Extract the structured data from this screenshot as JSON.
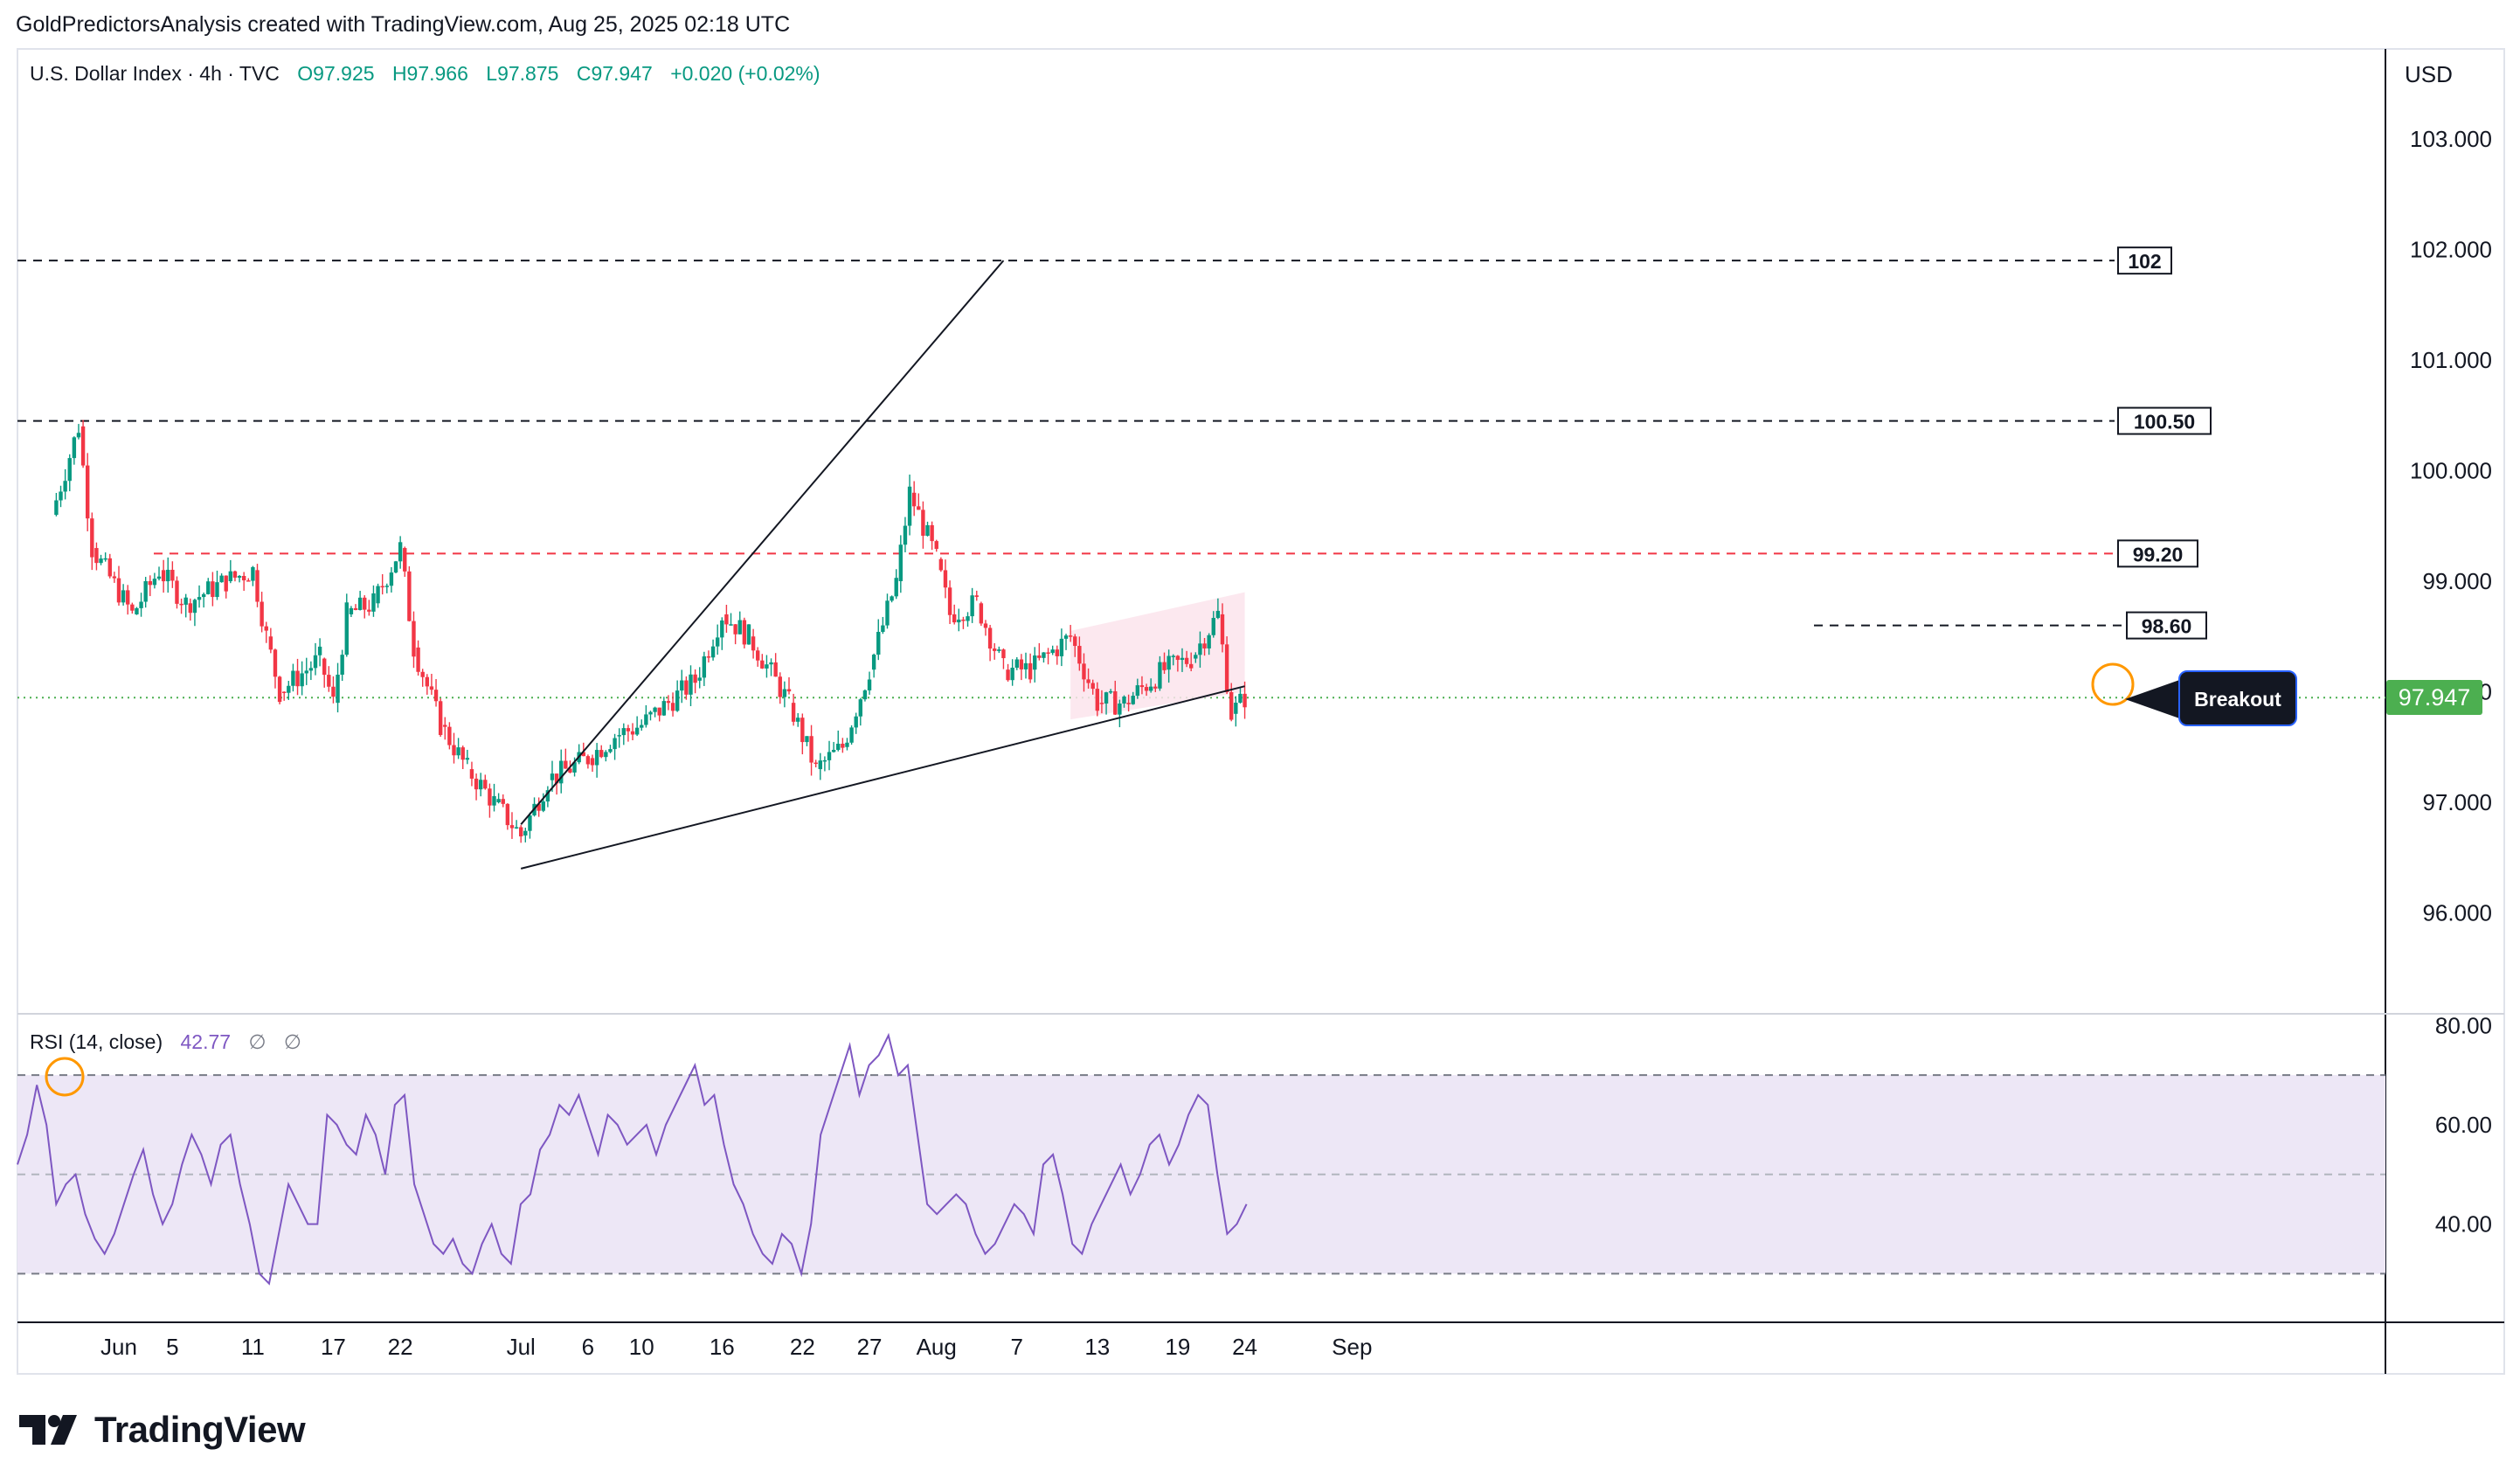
{
  "header": {
    "attribution": "GoldPredictorsAnalysis created with TradingView.com, Aug 25, 2025 02:18 UTC"
  },
  "legend": {
    "symbol": "U.S. Dollar Index · 4h · TVC",
    "open": "O97.925",
    "high": "H97.966",
    "low": "L97.875",
    "close": "C97.947",
    "change": "+0.020 (+0.02%)",
    "up_color": "#089981"
  },
  "price_axis": {
    "currency": "USD",
    "current_price_label": "97.947",
    "current_price_color": "#4caf50"
  },
  "rsi_legend": {
    "name": "RSI (14, close)",
    "value": "42.77",
    "extra1": "∅",
    "extra2": "∅",
    "color": "#7e57c2"
  },
  "annotations": {
    "breakout": "Breakout"
  },
  "branding": {
    "logo_text": "TradingView"
  },
  "colors": {
    "bull": "#089981",
    "bear": "#f23645",
    "rsi_line": "#7e57c2",
    "rsi_band": "#ede7f6",
    "resistance_red": "#f23645",
    "highlight_circle": "#ff9800",
    "pink_zone": "#fce4ec"
  },
  "chart_data": [
    {
      "type": "candlestick",
      "title": "U.S. Dollar Index · 4h · TVC",
      "y_ticks": [
        "96.000",
        "97.000",
        "98.000",
        "99.000",
        "100.000",
        "101.000",
        "102.000",
        "103.000"
      ],
      "x_tick_labels": [
        "Jun",
        "5",
        "11",
        "17",
        "22",
        "Jul",
        "6",
        "10",
        "16",
        "22",
        "27",
        "Aug",
        "7",
        "13",
        "19",
        "24",
        "Sep"
      ],
      "ylim": [
        95.0,
        103.6
      ],
      "current_price": 97.947,
      "close_path": [
        {
          "date": "2025-05-27",
          "close": 99.6
        },
        {
          "date": "2025-05-29",
          "close": 100.4
        },
        {
          "date": "2025-05-30",
          "close": 99.3
        },
        {
          "date": "2025-06-02",
          "close": 98.7
        },
        {
          "date": "2025-06-04",
          "close": 99.1
        },
        {
          "date": "2025-06-06",
          "close": 98.8
        },
        {
          "date": "2025-06-09",
          "close": 99.0
        },
        {
          "date": "2025-06-11",
          "close": 99.1
        },
        {
          "date": "2025-06-12",
          "close": 98.5
        },
        {
          "date": "2025-06-13",
          "close": 98.0
        },
        {
          "date": "2025-06-16",
          "close": 98.3
        },
        {
          "date": "2025-06-17",
          "close": 97.9
        },
        {
          "date": "2025-06-18",
          "close": 98.7
        },
        {
          "date": "2025-06-20",
          "close": 98.8
        },
        {
          "date": "2025-06-22",
          "close": 99.3
        },
        {
          "date": "2025-06-23",
          "close": 98.4
        },
        {
          "date": "2025-06-25",
          "close": 97.7
        },
        {
          "date": "2025-06-27",
          "close": 97.3
        },
        {
          "date": "2025-06-29",
          "close": 97.0
        },
        {
          "date": "2025-07-01",
          "close": 96.7
        },
        {
          "date": "2025-07-03",
          "close": 97.2
        },
        {
          "date": "2025-07-06",
          "close": 97.4
        },
        {
          "date": "2025-07-08",
          "close": 97.6
        },
        {
          "date": "2025-07-10",
          "close": 97.7
        },
        {
          "date": "2025-07-14",
          "close": 98.1
        },
        {
          "date": "2025-07-16",
          "close": 98.7
        },
        {
          "date": "2025-07-18",
          "close": 98.5
        },
        {
          "date": "2025-07-21",
          "close": 97.9
        },
        {
          "date": "2025-07-23",
          "close": 97.3
        },
        {
          "date": "2025-07-25",
          "close": 97.5
        },
        {
          "date": "2025-07-27",
          "close": 98.2
        },
        {
          "date": "2025-07-29",
          "close": 99.0
        },
        {
          "date": "2025-07-30",
          "close": 99.8
        },
        {
          "date": "2025-08-01",
          "close": 99.2
        },
        {
          "date": "2025-08-02",
          "close": 98.7
        },
        {
          "date": "2025-08-04",
          "close": 98.8
        },
        {
          "date": "2025-08-06",
          "close": 98.2
        },
        {
          "date": "2025-08-08",
          "close": 98.2
        },
        {
          "date": "2025-08-11",
          "close": 98.5
        },
        {
          "date": "2025-08-13",
          "close": 97.9
        },
        {
          "date": "2025-08-15",
          "close": 97.9
        },
        {
          "date": "2025-08-18",
          "close": 98.2
        },
        {
          "date": "2025-08-20",
          "close": 98.3
        },
        {
          "date": "2025-08-22",
          "close": 98.7
        },
        {
          "date": "2025-08-23",
          "close": 97.8
        },
        {
          "date": "2025-08-24",
          "close": 97.947
        }
      ],
      "horizontal_levels": [
        {
          "label": "102",
          "price": 101.9,
          "style": "dashed",
          "color": "#131722"
        },
        {
          "label": "100.50",
          "price": 100.45,
          "style": "dashed",
          "color": "#131722"
        },
        {
          "label": "99.20",
          "price": 99.25,
          "style": "dashed",
          "color": "#f23645"
        },
        {
          "label": "98.60",
          "price": 98.6,
          "style": "dashed",
          "color": "#131722"
        }
      ],
      "trendlines": [
        {
          "from": {
            "date": "2025-07-01",
            "price": 96.4
          },
          "to": {
            "date": "2025-08-24",
            "price": 98.05
          }
        },
        {
          "from": {
            "date": "2025-07-01",
            "price": 96.8
          },
          "to": {
            "date": "2025-08-06",
            "price": 101.9
          }
        }
      ]
    },
    {
      "type": "line",
      "title": "RSI (14, close)",
      "y_ticks": [
        "40.00",
        "60.00",
        "80.00"
      ],
      "ylim": [
        20,
        82
      ],
      "bands": [
        30,
        50,
        70
      ],
      "current_value": 42.77,
      "values": [
        52,
        58,
        68,
        60,
        44,
        48,
        50,
        42,
        37,
        34,
        38,
        44,
        50,
        55,
        46,
        40,
        44,
        52,
        58,
        54,
        48,
        56,
        58,
        48,
        40,
        30,
        28,
        38,
        48,
        44,
        40,
        40,
        62,
        60,
        56,
        54,
        62,
        58,
        50,
        64,
        66,
        48,
        42,
        36,
        34,
        37,
        32,
        30,
        36,
        40,
        34,
        32,
        44,
        46,
        55,
        58,
        64,
        62,
        66,
        60,
        54,
        62,
        60,
        56,
        58,
        60,
        54,
        60,
        64,
        68,
        72,
        64,
        66,
        56,
        48,
        44,
        38,
        34,
        32,
        38,
        36,
        30,
        40,
        58,
        64,
        70,
        76,
        66,
        72,
        74,
        78,
        70,
        72,
        58,
        44,
        42,
        44,
        46,
        44,
        38,
        34,
        36,
        40,
        44,
        42,
        38,
        52,
        54,
        46,
        36,
        34,
        40,
        44,
        48,
        52,
        46,
        50,
        56,
        58,
        52,
        56,
        62,
        66,
        64,
        50,
        38,
        40,
        44
      ]
    }
  ]
}
